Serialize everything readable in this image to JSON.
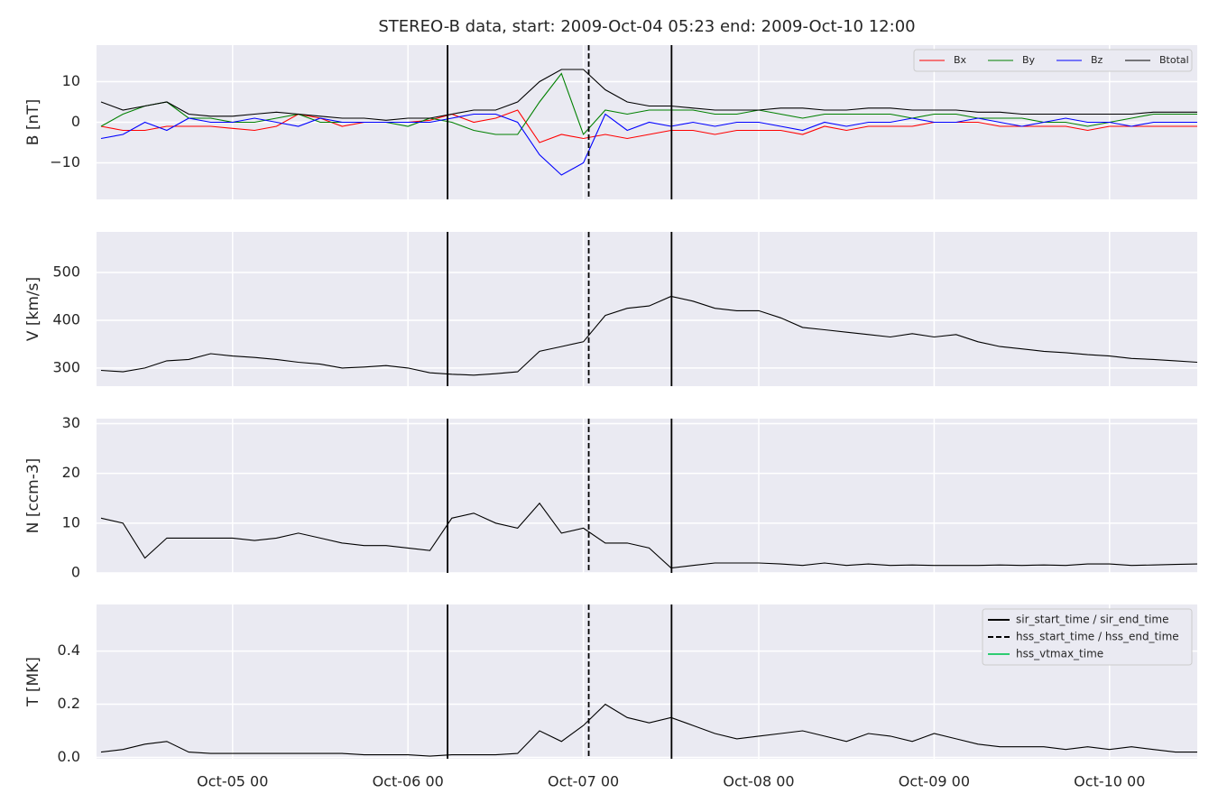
{
  "chart_data": {
    "type": "line",
    "title": "STEREO-B data, start: 2009-Oct-04 05:23  end: 2009-Oct-10 12:00",
    "xlim": [
      "2009-10-04T05:23",
      "2009-10-10T12:00"
    ],
    "xticks": [
      {
        "value": "2009-10-05T00:00",
        "label": "Oct-05 00"
      },
      {
        "value": "2009-10-06T00:00",
        "label": "Oct-06 00"
      },
      {
        "value": "2009-10-07T00:00",
        "label": "Oct-07 00"
      },
      {
        "value": "2009-10-08T00:00",
        "label": "Oct-08 00"
      },
      {
        "value": "2009-10-09T00:00",
        "label": "Oct-09 00"
      },
      {
        "value": "2009-10-10T00:00",
        "label": "Oct-10 00"
      }
    ],
    "grid": true,
    "x": [
      "2009-10-04T06:00",
      "2009-10-04T09:00",
      "2009-10-04T12:00",
      "2009-10-04T15:00",
      "2009-10-04T18:00",
      "2009-10-04T21:00",
      "2009-10-05T00:00",
      "2009-10-05T03:00",
      "2009-10-05T06:00",
      "2009-10-05T09:00",
      "2009-10-05T12:00",
      "2009-10-05T15:00",
      "2009-10-05T18:00",
      "2009-10-05T21:00",
      "2009-10-06T00:00",
      "2009-10-06T03:00",
      "2009-10-06T06:00",
      "2009-10-06T09:00",
      "2009-10-06T12:00",
      "2009-10-06T15:00",
      "2009-10-06T18:00",
      "2009-10-06T21:00",
      "2009-10-07T00:00",
      "2009-10-07T03:00",
      "2009-10-07T06:00",
      "2009-10-07T09:00",
      "2009-10-07T12:00",
      "2009-10-07T15:00",
      "2009-10-07T18:00",
      "2009-10-07T21:00",
      "2009-10-08T00:00",
      "2009-10-08T03:00",
      "2009-10-08T06:00",
      "2009-10-08T09:00",
      "2009-10-08T12:00",
      "2009-10-08T15:00",
      "2009-10-08T18:00",
      "2009-10-08T21:00",
      "2009-10-09T00:00",
      "2009-10-09T03:00",
      "2009-10-09T06:00",
      "2009-10-09T09:00",
      "2009-10-09T12:00",
      "2009-10-09T15:00",
      "2009-10-09T18:00",
      "2009-10-09T21:00",
      "2009-10-10T00:00",
      "2009-10-10T03:00",
      "2009-10-10T06:00",
      "2009-10-10T09:00",
      "2009-10-10T12:00"
    ],
    "events": [
      {
        "x": "2009-10-06T05:25",
        "color": "#000000",
        "style": "solid"
      },
      {
        "x": "2009-10-07T00:44",
        "color": "#000000",
        "style": "dashed"
      },
      {
        "x": "2009-10-07T12:04",
        "color": "#000000",
        "style": "solid"
      }
    ],
    "event_legend": [
      {
        "name": "sir_start_time / sir_end_time",
        "color": "#000000",
        "style": "solid"
      },
      {
        "name": "hss_start_time / hss_end_time",
        "color": "#000000",
        "style": "dashed"
      },
      {
        "name": "hss_vtmax_time",
        "color": "#2ecc71",
        "style": "solid"
      }
    ],
    "event_legend_corner": "upper right",
    "panels": [
      {
        "ylabel": "B [nT]",
        "ylim": [
          -19,
          19
        ],
        "yticks": [
          {
            "value": -10,
            "label": "−10"
          },
          0,
          10
        ],
        "legend": "upper right",
        "series": [
          {
            "name": "Bx",
            "color": "#ff0000",
            "values": [
              -1,
              -2,
              -2,
              -1,
              -1,
              -1,
              -1.5,
              -2,
              -1,
              2,
              1,
              -1,
              0,
              0,
              0,
              0.5,
              2,
              0,
              1,
              3,
              -5,
              -3,
              -4,
              -3,
              -4,
              -3,
              -2,
              -2,
              -3,
              -2,
              -2,
              -2,
              -3,
              -1,
              -2,
              -1,
              -1,
              -1,
              0,
              0,
              0,
              -1,
              -1,
              -1,
              -1,
              -2,
              -1,
              -1,
              -1,
              -1,
              -1
            ]
          },
          {
            "name": "By",
            "color": "#008000",
            "values": [
              -1,
              2,
              4,
              5,
              1,
              1,
              0,
              0,
              1,
              2,
              0,
              0,
              0,
              0,
              -1,
              1,
              0,
              -2,
              -3,
              -3,
              5,
              12,
              -3,
              3,
              2,
              3,
              3,
              3,
              2,
              2,
              3,
              2,
              1,
              2,
              2,
              2,
              2,
              1,
              2,
              2,
              1,
              1,
              1,
              0,
              0,
              -1,
              0,
              1,
              2,
              2,
              2
            ]
          },
          {
            "name": "Bz",
            "color": "#0000ff",
            "values": [
              -4,
              -3,
              0,
              -2,
              1,
              0,
              0,
              1,
              0,
              -1,
              1,
              0,
              0,
              0,
              0,
              0,
              1,
              2,
              2,
              0,
              -8,
              -13,
              -10,
              2,
              -2,
              0,
              -1,
              0,
              -1,
              0,
              0,
              -1,
              -2,
              0,
              -1,
              0,
              0,
              1,
              0,
              0,
              1,
              0,
              -1,
              0,
              1,
              0,
              0,
              -1,
              0,
              0,
              0
            ]
          },
          {
            "name": "Btotal",
            "color": "#000000",
            "values": [
              5,
              3,
              4,
              5,
              2,
              1.5,
              1.5,
              2,
              2.5,
              2,
              1.5,
              1,
              1,
              0.5,
              1,
              1,
              2,
              3,
              3,
              5,
              10,
              13,
              13,
              8,
              5,
              4,
              4,
              3.5,
              3,
              3,
              3,
              3.5,
              3.5,
              3,
              3,
              3.5,
              3.5,
              3,
              3,
              3,
              2.5,
              2.5,
              2,
              2,
              2,
              2,
              2,
              2,
              2.5,
              2.5,
              2.5
            ]
          }
        ]
      },
      {
        "ylabel": "V [km/s]",
        "ylim": [
          262,
          585
        ],
        "yticks": [
          300,
          400,
          500
        ],
        "series": [
          {
            "color": "#000000",
            "values": [
              295,
              292,
              300,
              315,
              318,
              330,
              325,
              322,
              318,
              312,
              308,
              300,
              302,
              305,
              300,
              290,
              287,
              285,
              288,
              292,
              335,
              345,
              355,
              410,
              425,
              430,
              450,
              440,
              425,
              420,
              420,
              405,
              385,
              380,
              375,
              370,
              365,
              372,
              365,
              370,
              355,
              345,
              340,
              335,
              332,
              328,
              325,
              320,
              318,
              315,
              312
            ]
          }
        ]
      },
      {
        "ylabel": "N [ccm-3]",
        "ylim": [
          0,
          31
        ],
        "yticks": [
          0,
          10,
          20,
          30
        ],
        "series": [
          {
            "color": "#000000",
            "values": [
              11,
              10,
              3,
              7,
              7,
              7,
              7,
              6.5,
              7,
              8,
              7,
              6,
              5.5,
              5.5,
              5,
              4.5,
              11,
              12,
              10,
              9,
              14,
              8,
              9,
              6,
              6,
              5,
              1,
              1.5,
              2,
              2,
              2,
              1.8,
              1.5,
              2,
              1.5,
              1.8,
              1.5,
              1.6,
              1.5,
              1.5,
              1.5,
              1.6,
              1.5,
              1.6,
              1.5,
              1.8,
              1.8,
              1.5,
              1.6,
              1.7,
              1.8
            ]
          }
        ]
      },
      {
        "ylabel": "T [MK]",
        "ylim": [
          -0.005,
          0.575
        ],
        "yticks": [
          {
            "value": 0,
            "label": "0.0"
          },
          0.2,
          0.4
        ],
        "series": [
          {
            "color": "#000000",
            "values": [
              0.02,
              0.03,
              0.05,
              0.06,
              0.02,
              0.015,
              0.015,
              0.015,
              0.015,
              0.015,
              0.015,
              0.015,
              0.01,
              0.01,
              0.01,
              0.005,
              0.01,
              0.01,
              0.01,
              0.015,
              0.1,
              0.06,
              0.12,
              0.2,
              0.15,
              0.13,
              0.15,
              0.12,
              0.09,
              0.07,
              0.08,
              0.09,
              0.1,
              0.08,
              0.06,
              0.09,
              0.08,
              0.06,
              0.09,
              0.07,
              0.05,
              0.04,
              0.04,
              0.04,
              0.03,
              0.04,
              0.03,
              0.04,
              0.03,
              0.02,
              0.02
            ]
          }
        ]
      }
    ]
  }
}
